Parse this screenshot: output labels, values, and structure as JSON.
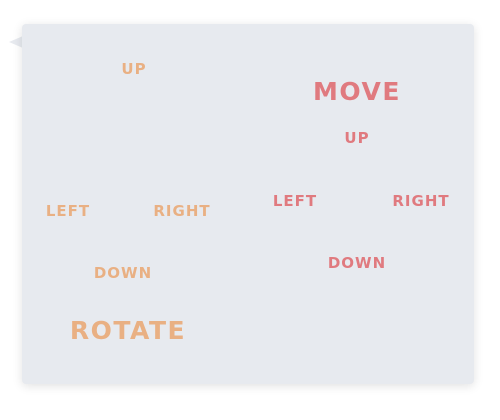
{
  "colors": {
    "rotate_group": "#e9b083",
    "move_group": "#e07a7f",
    "panel_bg": "#e7eaef"
  },
  "rotate_group": {
    "title": "ROTATE",
    "up": "UP",
    "left": "LEFT",
    "right": "RIGHT",
    "down": "DOWN"
  },
  "move_group": {
    "title": "MOVE",
    "up": "UP",
    "left": "LEFT",
    "right": "RIGHT",
    "down": "DOWN"
  }
}
